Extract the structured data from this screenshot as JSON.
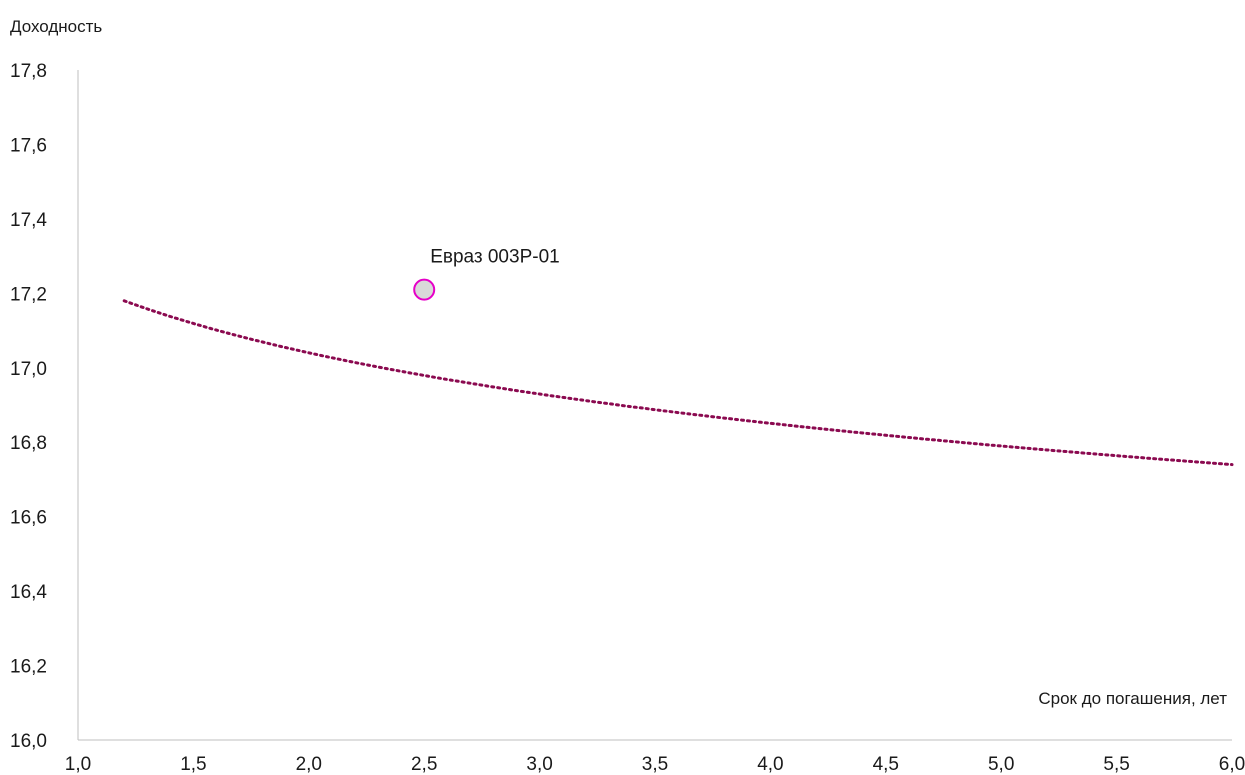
{
  "chart_data": {
    "type": "scatter",
    "ylabel": "Доходность",
    "xlabel": "Срок до погашения, лет",
    "xlim": [
      1.0,
      6.0
    ],
    "ylim": [
      16.0,
      17.8
    ],
    "x_ticks": [
      "1,0",
      "1,5",
      "2,0",
      "2,5",
      "3,0",
      "3,5",
      "4,0",
      "4,5",
      "5,0",
      "5,5",
      "6,0"
    ],
    "y_ticks": [
      "16,0",
      "16,2",
      "16,4",
      "16,6",
      "16,8",
      "17,0",
      "17,2",
      "17,4",
      "17,6",
      "17,8"
    ],
    "points": [
      {
        "label": "Евраз 003Р-01",
        "x": 2.5,
        "y": 17.21
      }
    ],
    "trendline": {
      "type": "logarithmic",
      "style": "dotted",
      "x_start": 1.2,
      "x_end": 6.0,
      "samples": [
        {
          "x": 1.2,
          "y": 17.18
        },
        {
          "x": 2.0,
          "y": 17.04
        },
        {
          "x": 2.5,
          "y": 16.98
        },
        {
          "x": 3.0,
          "y": 16.93
        },
        {
          "x": 4.0,
          "y": 16.85
        },
        {
          "x": 5.0,
          "y": 16.79
        },
        {
          "x": 6.0,
          "y": 16.74
        }
      ]
    },
    "grid": false,
    "legend": "none",
    "colors": {
      "trendline": "#8B0A50",
      "point_fill": "#D9D9D9",
      "point_stroke": "#E600C8",
      "axis": "#BFBFBF"
    }
  }
}
